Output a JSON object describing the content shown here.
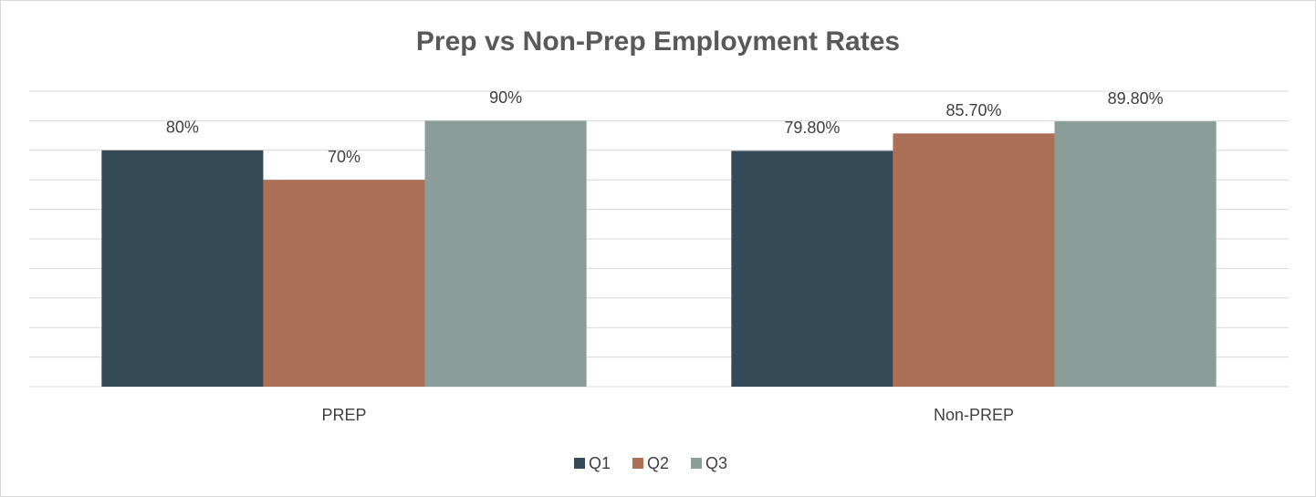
{
  "chart_data": {
    "type": "bar",
    "title": "Prep vs Non-Prep Employment Rates",
    "categories": [
      "PREP",
      "Non-PREP"
    ],
    "series": [
      {
        "name": "Q1",
        "color": "#354a56",
        "values": [
          80,
          79.8
        ],
        "value_labels": [
          "80%",
          "79.80%"
        ]
      },
      {
        "name": "Q2",
        "color": "#ab7055",
        "values": [
          70,
          85.7
        ],
        "value_labels": [
          "70%",
          "85.70%"
        ]
      },
      {
        "name": "Q3",
        "color": "#8a9d98",
        "values": [
          90,
          89.8
        ],
        "value_labels": [
          "90%",
          "89.80%"
        ]
      }
    ],
    "ylim": [
      0,
      100
    ],
    "yticks": [
      0,
      10,
      20,
      30,
      40,
      50,
      60,
      70,
      80,
      90,
      100
    ],
    "grid": true,
    "legend": "bottom"
  }
}
